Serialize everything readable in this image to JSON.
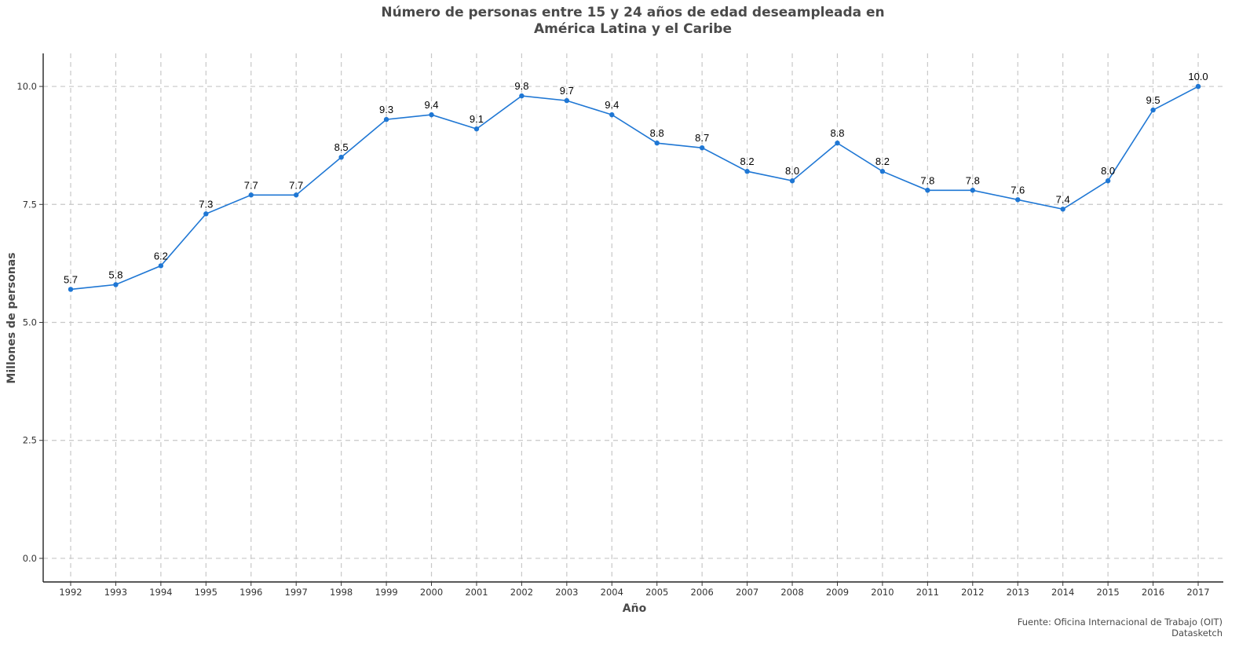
{
  "chart_data": {
    "type": "line",
    "title_lines": [
      "Número de personas entre 15 y 24 años de edad deseampleada en",
      "América Latina y el Caribe"
    ],
    "xlabel": "Año",
    "ylabel": "Millones de personas",
    "x": [
      "1992",
      "1993",
      "1994",
      "1995",
      "1996",
      "1997",
      "1998",
      "1999",
      "2000",
      "2001",
      "2002",
      "2003",
      "2004",
      "2005",
      "2006",
      "2007",
      "2008",
      "2009",
      "2010",
      "2011",
      "2012",
      "2013",
      "2014",
      "2015",
      "2016",
      "2017"
    ],
    "values": [
      5.7,
      5.8,
      6.2,
      7.3,
      7.7,
      7.7,
      8.5,
      9.3,
      9.4,
      9.1,
      9.8,
      9.7,
      9.4,
      8.8,
      8.7,
      8.2,
      8.0,
      8.8,
      8.2,
      7.8,
      7.8,
      7.6,
      7.4,
      8.0,
      9.5,
      10.0
    ],
    "data_labels": [
      "5.7",
      "5.8",
      "6.2",
      "7.3",
      "7.7",
      "7.7",
      "8.5",
      "9.3",
      "9.4",
      "9.1",
      "9.8",
      "9.7",
      "9.4",
      "8.8",
      "8.7",
      "8.2",
      "8.0",
      "8.8",
      "8.2",
      "7.8",
      "7.8",
      "7.6",
      "7.4",
      "8.0",
      "9.5",
      "10.0"
    ],
    "yticks": [
      "0.0",
      "2.5",
      "5.0",
      "7.5",
      "10.0"
    ],
    "ytick_values": [
      0,
      2.5,
      5,
      7.5,
      10
    ],
    "ylim": [
      -0.5,
      10.7
    ],
    "grid": true,
    "line_color": "#1f77d4",
    "caption_lines": [
      "Fuente: Oficina Internacional de Trabajo (OIT)",
      "Datasketch"
    ]
  }
}
